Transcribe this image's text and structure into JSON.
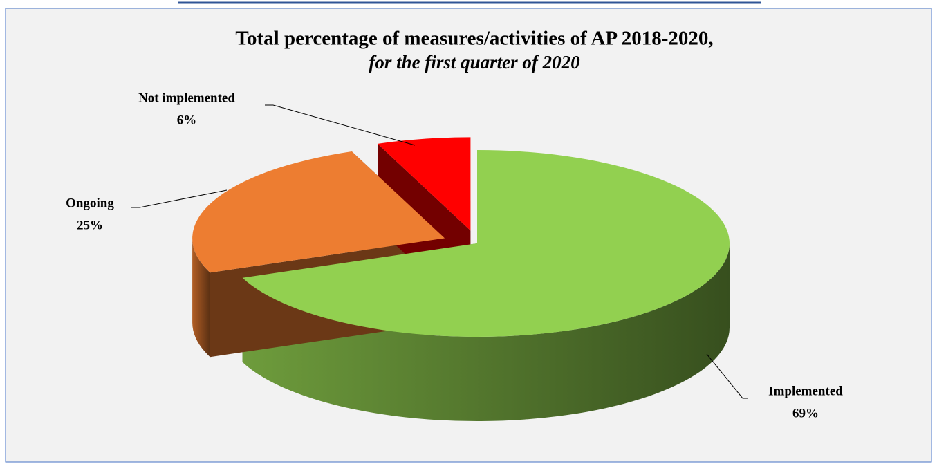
{
  "chart_data": {
    "type": "pie",
    "title": "Total percentage of measures/activities of AP 2018-2020,",
    "subtitle": "for the first quarter of 2020",
    "categories": [
      "Implemented",
      "Ongoing",
      "Not implemented"
    ],
    "values": [
      69,
      25,
      6
    ],
    "value_labels": [
      "69%",
      "25%",
      "6%"
    ],
    "colors": [
      "#92d050",
      "#ed7d31",
      "#ff0000"
    ]
  }
}
